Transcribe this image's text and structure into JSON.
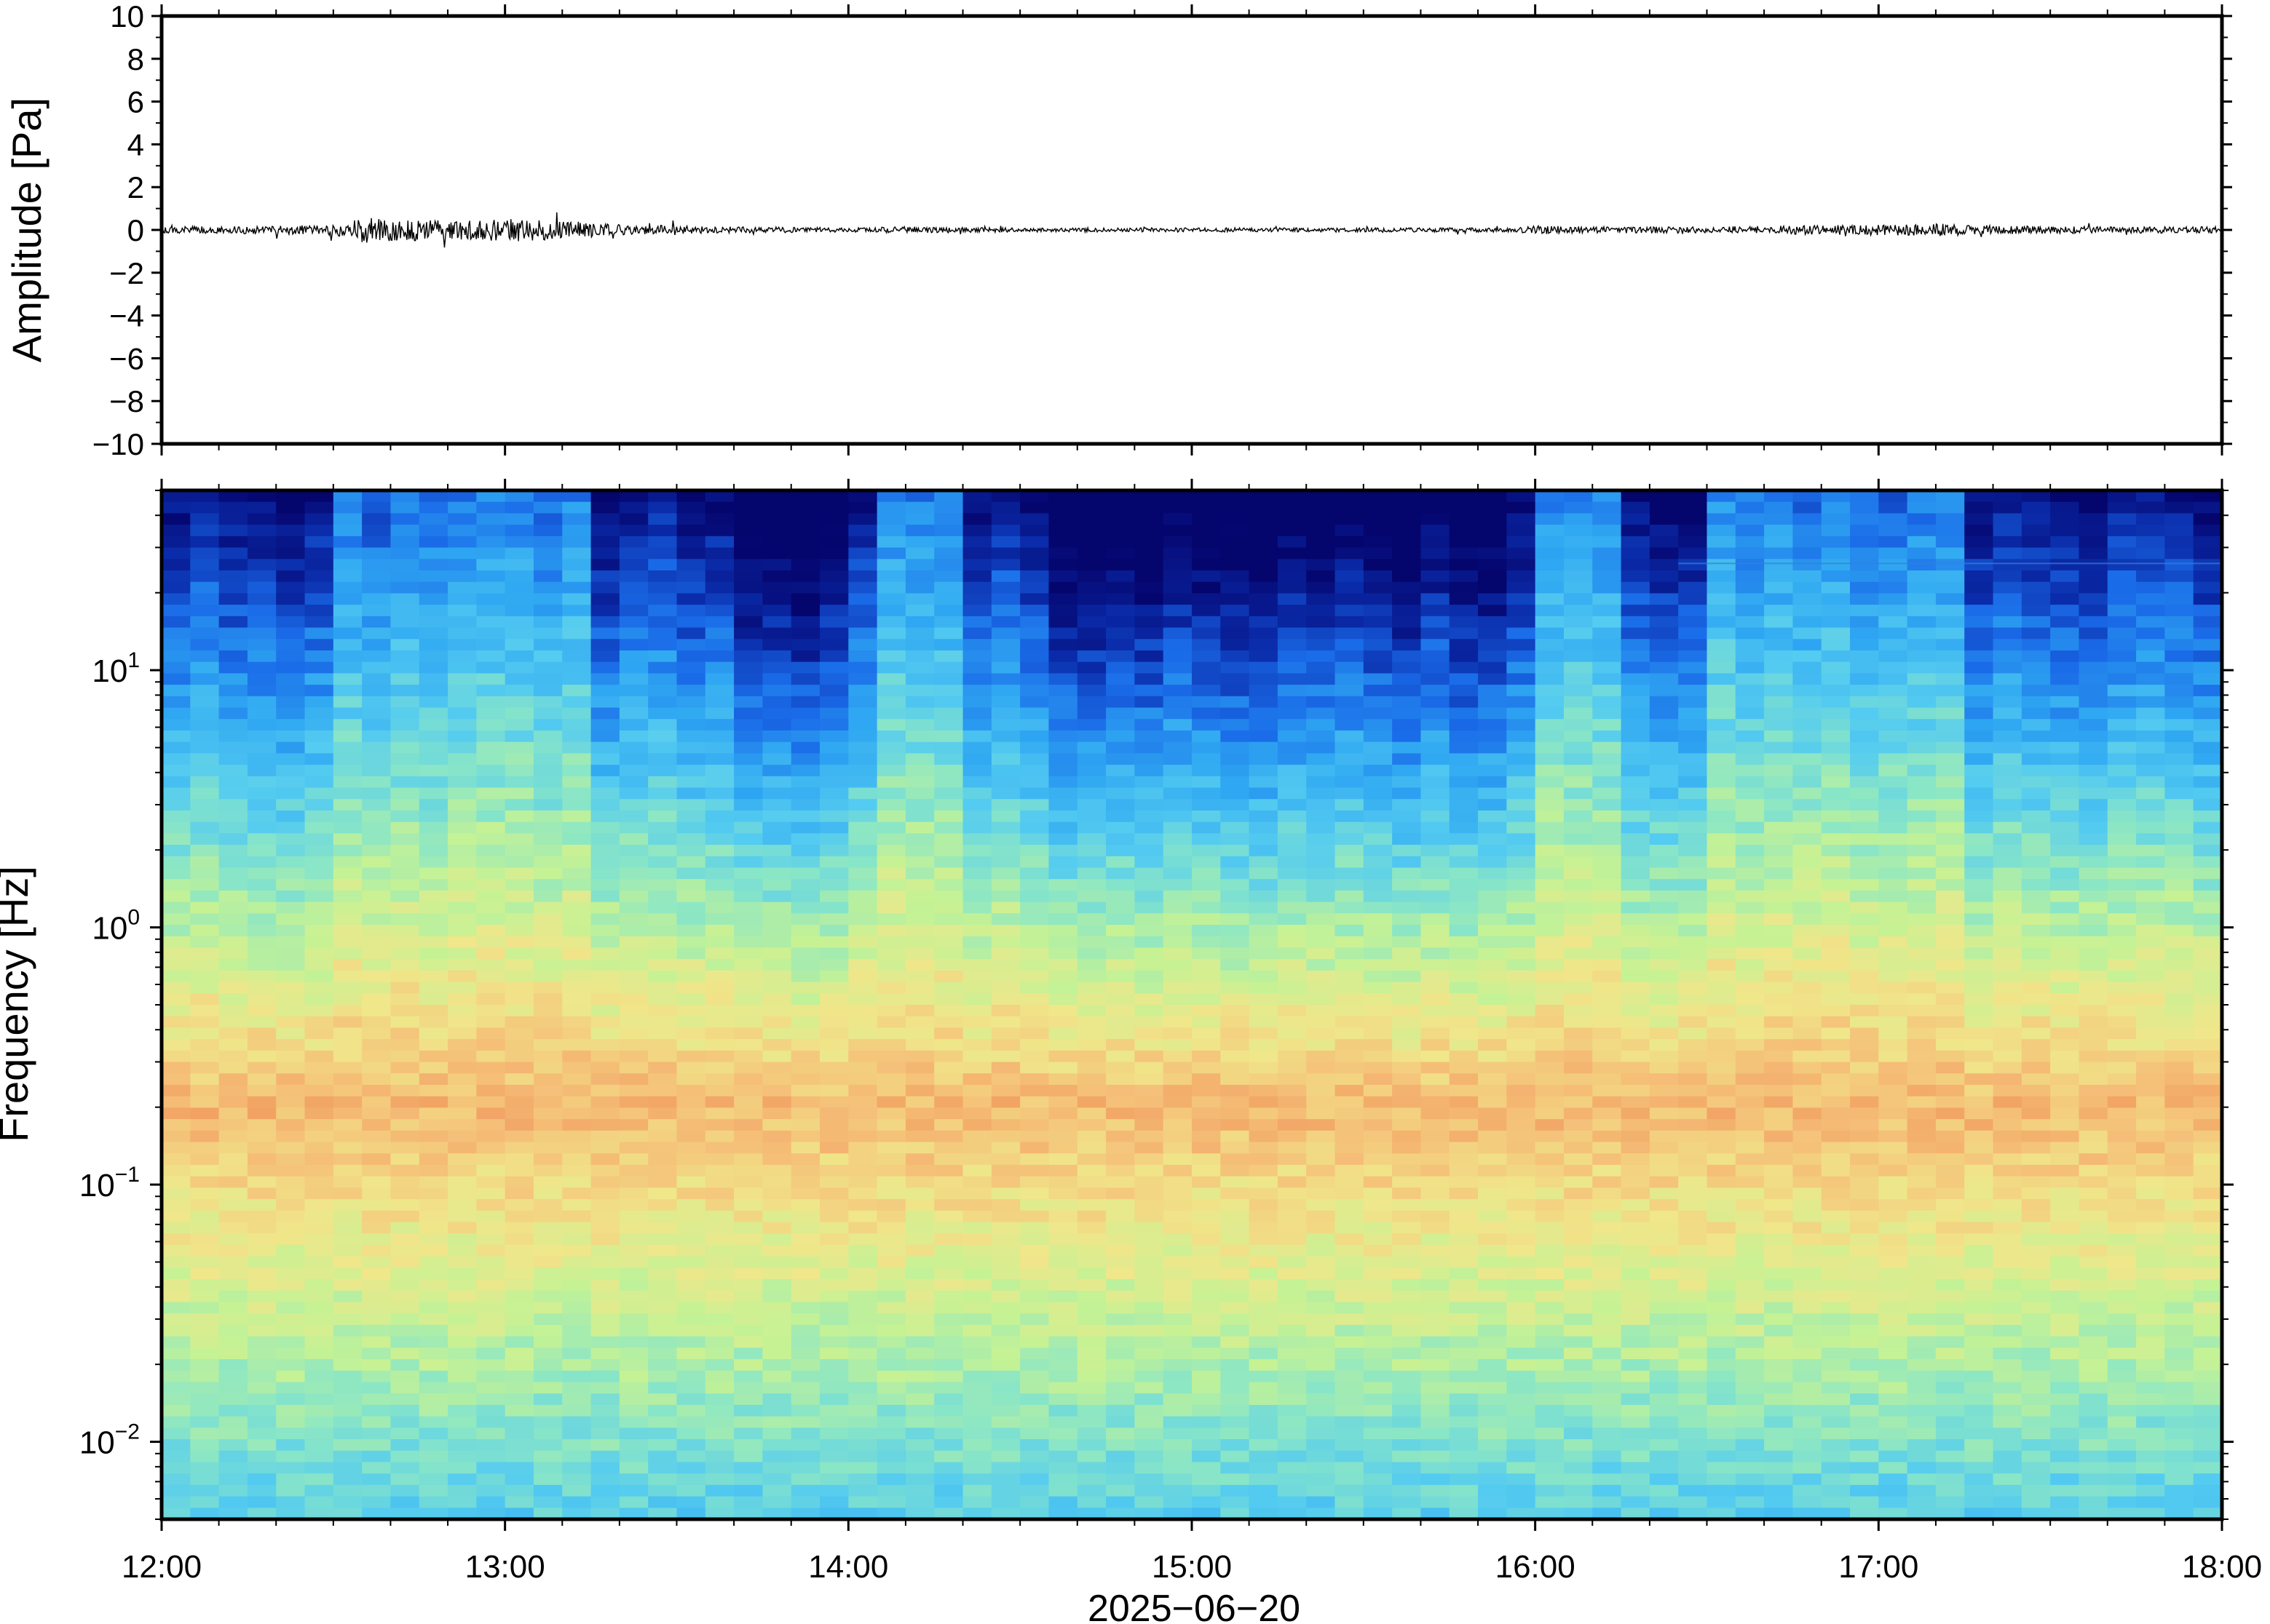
{
  "chart_data": [
    {
      "type": "line",
      "ylabel": "Amplitude [Pa]",
      "ylim": [
        -10,
        10
      ],
      "yticks": [
        "10",
        "8",
        "6",
        "4",
        "2",
        "0",
        "−2",
        "−4",
        "−6",
        "−8",
        "−10"
      ],
      "xlim": [
        "12:00",
        "18:00"
      ],
      "grid": false,
      "series": [
        {
          "color": "#000000",
          "envelope": {
            "x": [
              "12:00",
              "12:20",
              "12:30",
              "12:35",
              "12:45",
              "12:55",
              "13:00",
              "13:05",
              "13:10",
              "13:20",
              "13:30",
              "13:40",
              "14:00",
              "14:10",
              "14:30",
              "15:00",
              "15:30",
              "15:55",
              "16:00",
              "16:10",
              "16:30",
              "16:45",
              "17:00",
              "17:10",
              "17:20",
              "17:40",
              "18:00"
            ],
            "amplitude": [
              0.15,
              0.2,
              0.25,
              0.6,
              0.5,
              0.45,
              0.55,
              0.5,
              0.45,
              0.25,
              0.2,
              0.15,
              0.1,
              0.15,
              0.1,
              0.1,
              0.1,
              0.1,
              0.2,
              0.15,
              0.15,
              0.2,
              0.25,
              0.3,
              0.2,
              0.15,
              0.15
            ]
          }
        }
      ]
    },
    {
      "type": "heatmap",
      "ylabel": "Frequency [Hz]",
      "xlabel": "2025−06−20",
      "yscale": "log",
      "ylim": [
        0.005,
        50
      ],
      "yticks": [
        0.01,
        0.1,
        1,
        10
      ],
      "xticks": [
        "12:00",
        "13:00",
        "14:00",
        "15:00",
        "16:00",
        "17:00",
        "18:00"
      ],
      "xlim": [
        "12:00",
        "18:00"
      ],
      "colormap": "jet",
      "colormap_stops": [
        "#05056e",
        "#0a2aa8",
        "#1a6be8",
        "#2fa7f2",
        "#54cbf0",
        "#8ae6c6",
        "#c6f294",
        "#f0e68a",
        "#f5bf78",
        "#ef8e55"
      ],
      "columns_minutes": 5,
      "band_features": {
        "microseism_peak_hz": 0.2,
        "strong_noise_periods": [
          [
            "12:30",
            "13:12"
          ],
          [
            "14:05",
            "14:20"
          ],
          [
            "16:00",
            "16:15"
          ],
          [
            "16:30",
            "17:15"
          ]
        ],
        "quiet_periods": [
          [
            "13:40",
            "14:00"
          ],
          [
            "14:35",
            "15:55"
          ]
        ],
        "tone_line_hz": 26,
        "tone_line_start": "16:25"
      }
    }
  ]
}
